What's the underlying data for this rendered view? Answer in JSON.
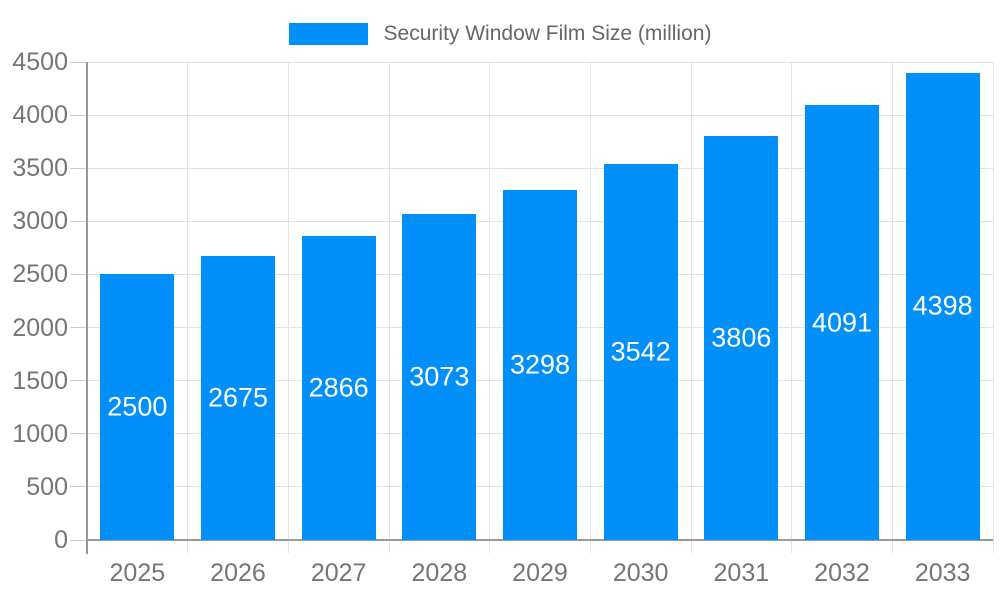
{
  "chart_data": {
    "type": "bar",
    "title": "",
    "legend": "Security Window Film Size (million)",
    "legend_position": "top",
    "categories": [
      "2025",
      "2026",
      "2027",
      "2028",
      "2029",
      "2030",
      "2031",
      "2032",
      "2033"
    ],
    "series": [
      {
        "name": "Security Window Film Size (million)",
        "values": [
          2500,
          2675,
          2866,
          3073,
          3298,
          3542,
          3806,
          4091,
          4398
        ]
      }
    ],
    "data_labels_shown": true,
    "xlabel": "",
    "ylabel": "",
    "ylim": [
      0,
      4500
    ],
    "y_ticks": [
      0,
      500,
      1000,
      1500,
      2000,
      2500,
      3000,
      3500,
      4000,
      4500
    ],
    "grid": true
  },
  "colors": {
    "bar": "#0190fa",
    "grid_line": "#e3e3e3",
    "axis_line": "#999999",
    "tick_mark": "#cccccc",
    "axis_label_text": "#757575",
    "legend_text": "#666666",
    "value_label_text": "#ffffff",
    "background": "#ffffff"
  }
}
